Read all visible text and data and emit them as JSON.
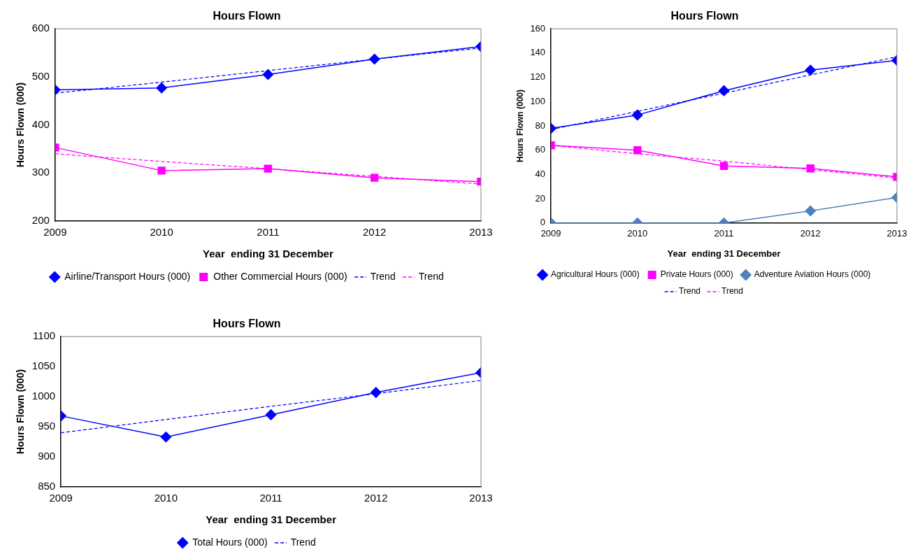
{
  "chart_data": [
    {
      "type": "line",
      "title": "Hours Flown",
      "xlabel": "Year  ending 31 December",
      "ylabel": "Hours Flown (000)",
      "x": [
        2009,
        2010,
        2011,
        2012,
        2013
      ],
      "xlim": [
        2009,
        2013
      ],
      "xticks": [
        2009,
        2010,
        2011,
        2012,
        2013
      ],
      "ylim": [
        200,
        600
      ],
      "yticks": [
        200,
        300,
        400,
        500,
        600
      ],
      "grid": false,
      "legend": "bottom",
      "series": [
        {
          "name": "Airline/Transport Hours (000)",
          "color": "#0000ff",
          "marker": "diamond",
          "line_style": "solid",
          "values": [
            473,
            477,
            505,
            537,
            563
          ]
        },
        {
          "name": "Other Commercial Hours (000)",
          "color": "#ff00ff",
          "marker": "square",
          "line_style": "solid",
          "values": [
            353,
            305,
            309,
            290,
            282
          ]
        },
        {
          "name": "Trend",
          "type": "line",
          "color": "#0000ff",
          "marker": "none",
          "line_style": "dashed",
          "values": [
            466,
            489,
            513,
            537,
            560
          ]
        },
        {
          "name": "Trend",
          "type": "line",
          "color": "#ff00ff",
          "marker": "none",
          "line_style": "dashed",
          "values": [
            340,
            324,
            309,
            293,
            277
          ]
        }
      ]
    },
    {
      "type": "line",
      "title": "Hours Flown",
      "xlabel": "Year  ending 31 December",
      "ylabel": "Hours Flown (000)",
      "x": [
        2009,
        2010,
        2011,
        2012,
        2013
      ],
      "xlim": [
        2009,
        2013
      ],
      "xticks": [
        2009,
        2010,
        2011,
        2012,
        2013
      ],
      "ylim": [
        0,
        160
      ],
      "yticks": [
        0,
        20,
        40,
        60,
        80,
        100,
        120,
        140,
        160
      ],
      "grid": false,
      "legend": "bottom",
      "series": [
        {
          "name": "Agricultural Hours (000)",
          "color": "#0000ff",
          "marker": "diamond",
          "line_style": "solid",
          "values": [
            78,
            89,
            109,
            126,
            134
          ]
        },
        {
          "name": "Private Hours (000)",
          "color": "#ff00ff",
          "marker": "square",
          "line_style": "solid",
          "values": [
            64,
            60,
            47,
            45,
            38
          ]
        },
        {
          "name": "Adventure Aviation Hours (000)",
          "color": "#4f81bd",
          "marker": "diamond",
          "line_style": "solid",
          "values": [
            0,
            0,
            0,
            10,
            21
          ]
        },
        {
          "name": "Trend",
          "type": "line",
          "color": "#0000ff",
          "marker": "none",
          "line_style": "dashed",
          "values": [
            77,
            92,
            107,
            122,
            137
          ]
        },
        {
          "name": "Trend",
          "type": "line",
          "color": "#ff00ff",
          "marker": "none",
          "line_style": "dashed",
          "values": [
            64,
            57,
            51,
            44,
            37
          ]
        }
      ]
    },
    {
      "type": "line",
      "title": "Hours Flown",
      "xlabel": "Year  ending 31 December",
      "ylabel": "Hours Flown (000)",
      "x": [
        2009,
        2010,
        2011,
        2012,
        2013
      ],
      "xlim": [
        2009,
        2013
      ],
      "xticks": [
        2009,
        2010,
        2011,
        2012,
        2013
      ],
      "ylim": [
        850,
        1100
      ],
      "yticks": [
        850,
        900,
        950,
        1000,
        1050,
        1100
      ],
      "grid": false,
      "legend": "bottom",
      "series": [
        {
          "name": "Total Hours (000)",
          "color": "#0000ff",
          "marker": "diamond",
          "line_style": "solid",
          "values": [
            968,
            933,
            970,
            1007,
            1040
          ]
        },
        {
          "name": "Trend",
          "type": "line",
          "color": "#0000ff",
          "marker": "none",
          "line_style": "dashed",
          "values": [
            940,
            962,
            984,
            1005,
            1027
          ]
        }
      ]
    }
  ]
}
